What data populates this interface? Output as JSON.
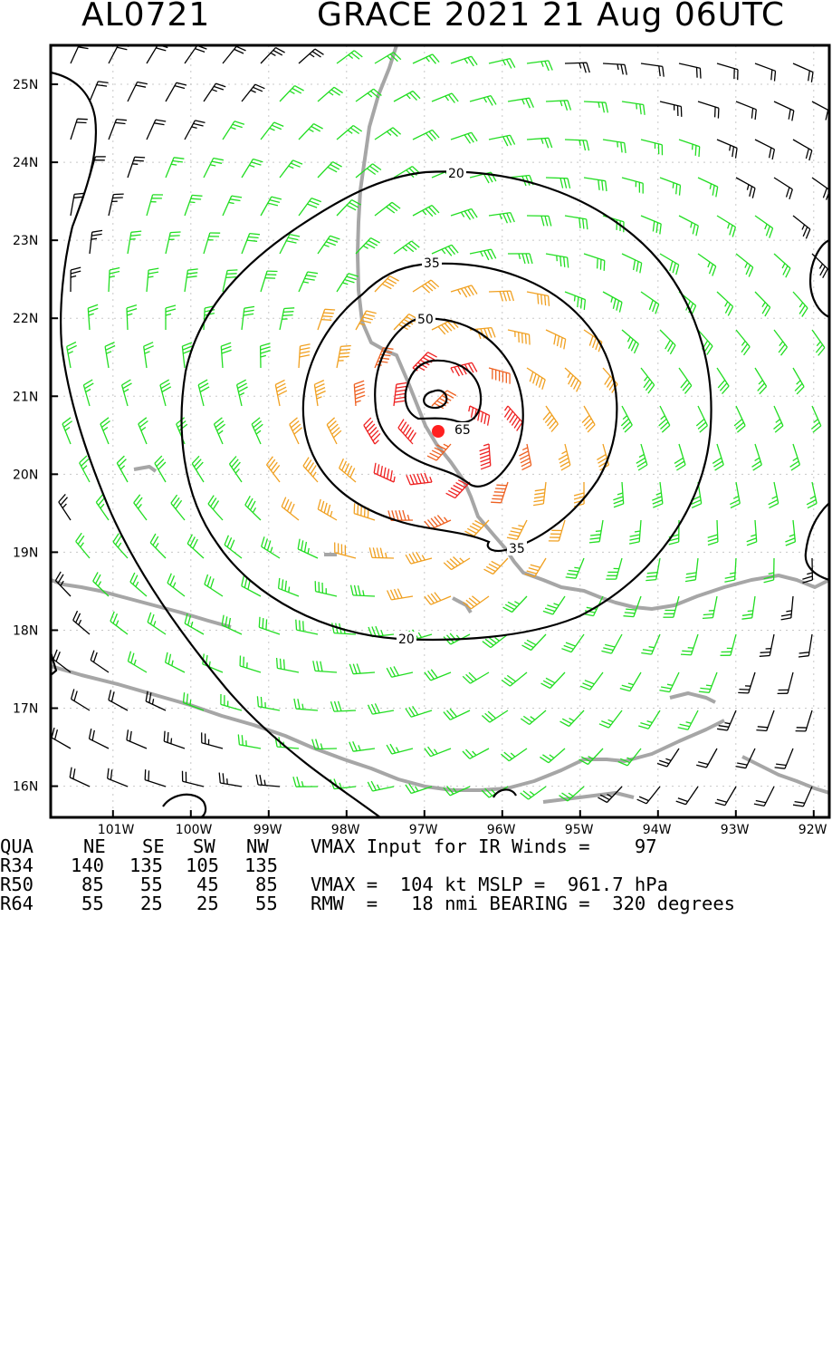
{
  "header": {
    "storm_id": "AL0721",
    "title": "GRACE 2021 21 Aug 06UTC"
  },
  "map": {
    "lat_labels": [
      "25N",
      "24N",
      "23N",
      "22N",
      "21N",
      "20N",
      "19N",
      "18N",
      "17N",
      "16N"
    ],
    "lon_labels": [
      "101W",
      "100W",
      "99W",
      "98W",
      "97W",
      "96W",
      "95W",
      "94W",
      "93W",
      "92W"
    ],
    "contour_labels": [
      "20",
      "35",
      "50",
      "65",
      "35",
      "20"
    ],
    "storm_center": {
      "lat": 20.55,
      "lon": -96.75
    },
    "colors": {
      "coast": "#a6a6a6",
      "contour": "#000000",
      "barb_weak": "#000000",
      "barb_34": "#22dd22",
      "barb_50": "#f0a020",
      "barb_64": "#ee6020",
      "barb_core": "#ee2020",
      "center": "#ff2020"
    }
  },
  "table": {
    "headers": [
      "QUA",
      "NE",
      "SE",
      "SW",
      "NW"
    ],
    "rows": [
      {
        "label": "R34",
        "values": [
          "140",
          "135",
          "105",
          "135"
        ]
      },
      {
        "label": "R50",
        "values": [
          "85",
          "55",
          "45",
          "85"
        ]
      },
      {
        "label": "R64",
        "values": [
          "55",
          "25",
          "25",
          "55"
        ]
      }
    ],
    "vmax_input": "VMAX Input for IR Winds =    97",
    "vmax_line": "VMAX =  104 kt MSLP =  961.7 hPa",
    "rmw_line": "RMW  =   18 nmi BEARING =  320 degrees"
  }
}
